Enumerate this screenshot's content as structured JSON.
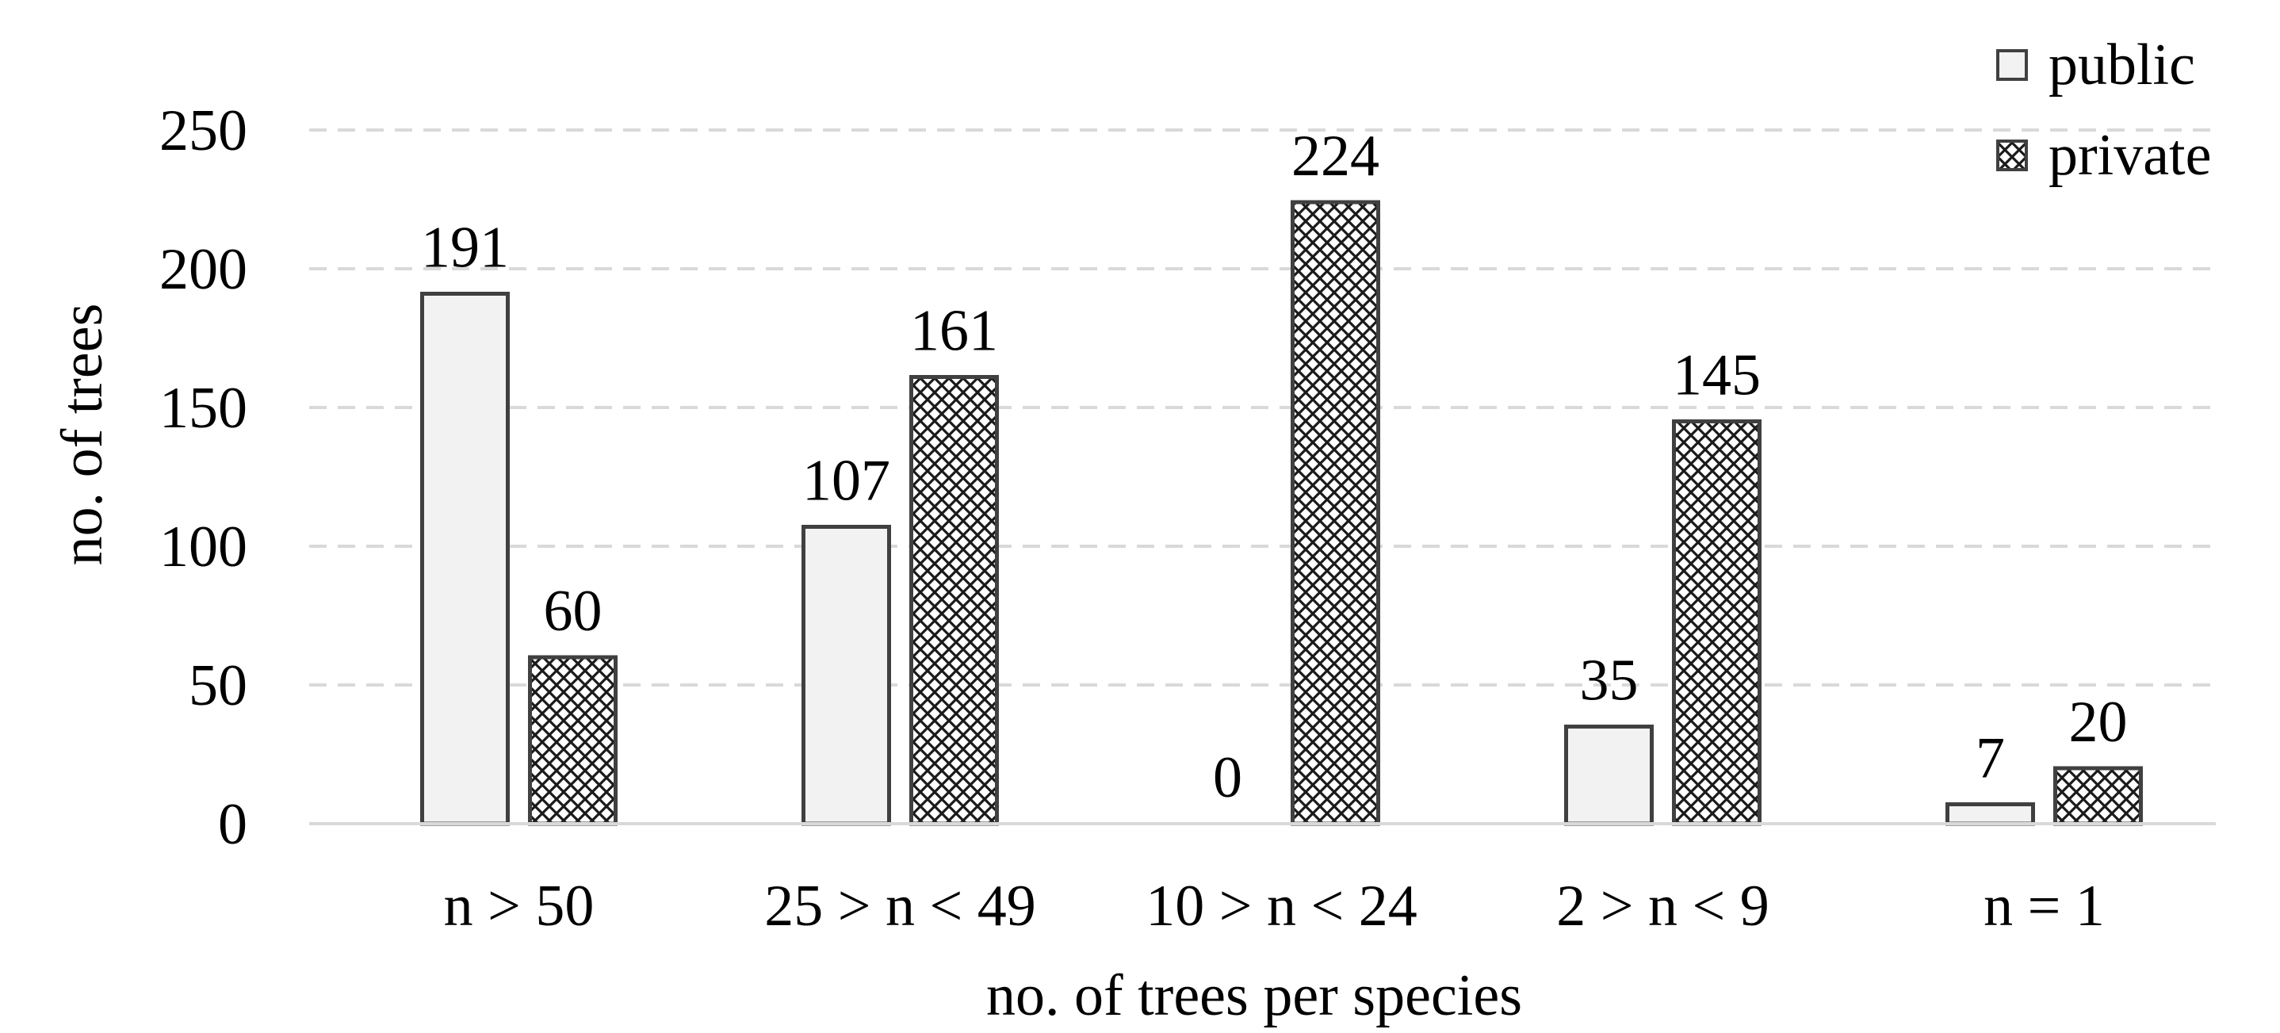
{
  "chart_data": {
    "type": "bar",
    "title": "",
    "xlabel": "no. of trees per species",
    "ylabel": "no. of trees",
    "categories": [
      "n > 50",
      "25 > n < 49",
      "10 > n < 24",
      "2 > n < 9",
      "n = 1"
    ],
    "series": [
      {
        "name": "public",
        "values": [
          191,
          107,
          0,
          35,
          7
        ],
        "pattern": "solid",
        "fill": "#f2f2f2"
      },
      {
        "name": "private",
        "values": [
          60,
          161,
          224,
          145,
          20
        ],
        "pattern": "crosshatch",
        "fill": "#ffffff"
      }
    ],
    "ylim": [
      0,
      250
    ],
    "yticks": [
      0,
      50,
      100,
      150,
      200,
      250
    ],
    "grid": true,
    "legend_position": "top-right",
    "data_labels": true
  },
  "colors": {
    "bar_stroke": "#404040",
    "gridline": "#d9d9d9",
    "axis_line": "#d9d9d9",
    "public_fill": "#f2f2f2",
    "hatch_line": "#1a1a1a"
  }
}
